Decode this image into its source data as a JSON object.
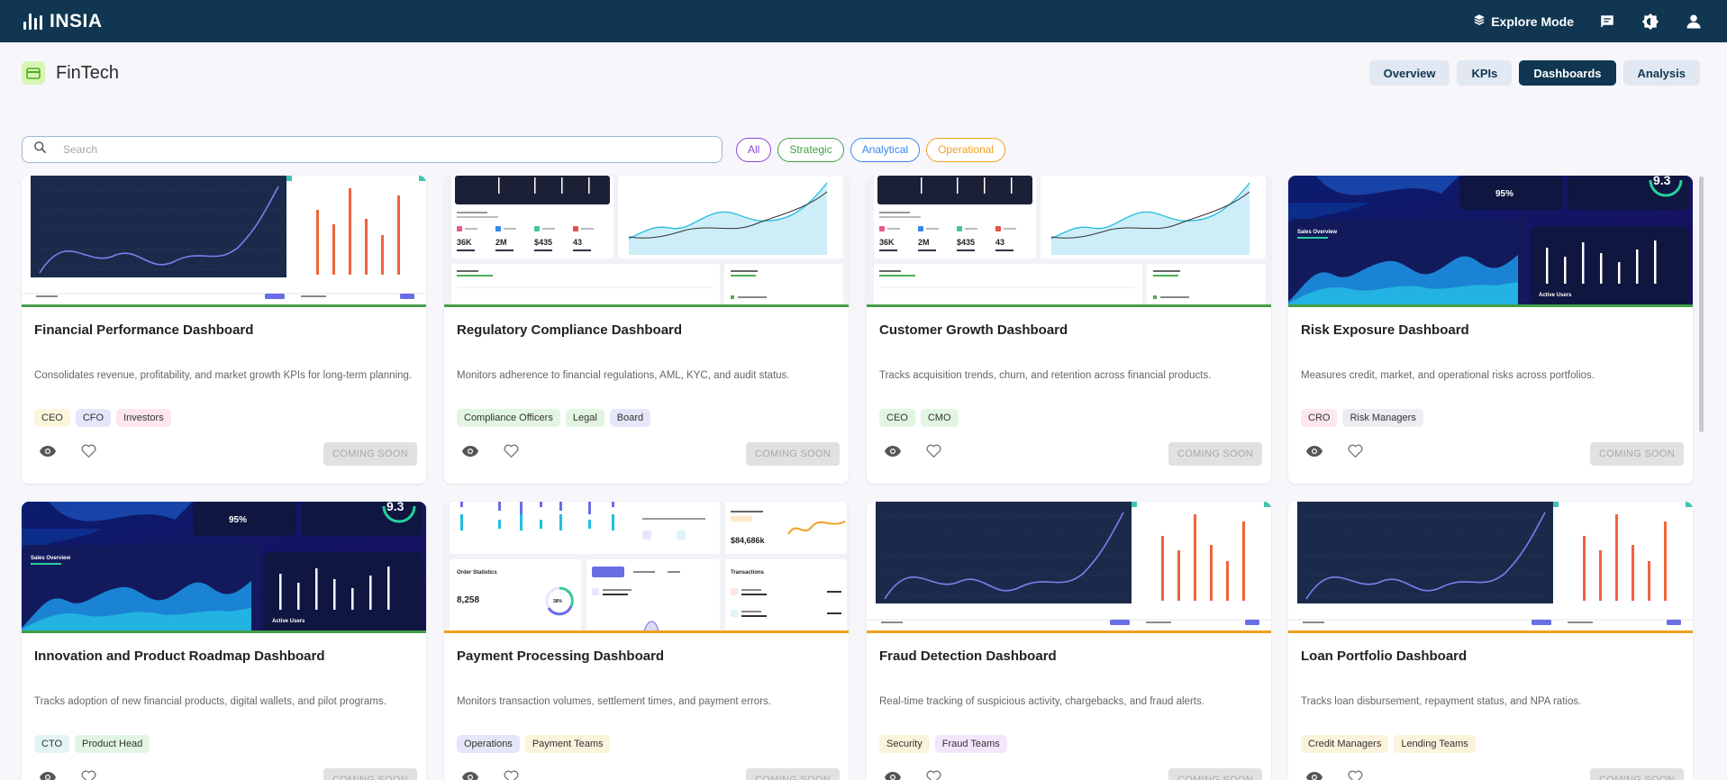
{
  "app": {
    "brand": "INSIA"
  },
  "topbar": {
    "explore_label": "Explore Mode"
  },
  "org": {
    "name": "FinTech"
  },
  "nav_tabs": [
    {
      "label": "Overview",
      "active": false
    },
    {
      "label": "KPIs",
      "active": false
    },
    {
      "label": "Dashboards",
      "active": true
    },
    {
      "label": "Analysis",
      "active": false
    }
  ],
  "search": {
    "placeholder": "Search",
    "value": ""
  },
  "filters": [
    {
      "label": "All",
      "color": "#8e44d8"
    },
    {
      "label": "Strategic",
      "color": "#43a047"
    },
    {
      "label": "Analytical",
      "color": "#3a86e8"
    },
    {
      "label": "Operational",
      "color": "#f0a020"
    }
  ],
  "coming_soon_label": "COMING SOON",
  "colors": {
    "strategic": "#43a047",
    "operational": "#f0a020",
    "topbar": "#103651",
    "accent_orange": "#f0643c"
  },
  "cards": [
    {
      "title": "Financial Performance Dashboard",
      "description": "Consolidates revenue, profitability, and market growth KPIs for long-term planning.",
      "tags": [
        {
          "label": "CEO",
          "bg": "#fbf6dc"
        },
        {
          "label": "CFO",
          "bg": "#e6e6fb"
        },
        {
          "label": "Investors",
          "bg": "#fde6ef"
        }
      ],
      "category": "strategic",
      "thumbnail": "line-bar"
    },
    {
      "title": "Regulatory Compliance Dashboard",
      "description": "Monitors adherence to financial regulations, AML, KYC, and audit status.",
      "tags": [
        {
          "label": "Compliance Officers",
          "bg": "#e2f5e2"
        },
        {
          "label": "Legal",
          "bg": "#e2f5e2"
        },
        {
          "label": "Board",
          "bg": "#e6e6fb"
        }
      ],
      "category": "strategic",
      "thumbnail": "stats-white"
    },
    {
      "title": "Customer Growth Dashboard",
      "description": "Tracks acquisition trends, churn, and retention across financial products.",
      "tags": [
        {
          "label": "CEO",
          "bg": "#e2f5e2"
        },
        {
          "label": "CMO",
          "bg": "#e2f5e2"
        }
      ],
      "category": "strategic",
      "thumbnail": "stats-white"
    },
    {
      "title": "Risk Exposure Dashboard",
      "description": "Measures credit, market, and operational risks across portfolios.",
      "tags": [
        {
          "label": "CRO",
          "bg": "#fde6ef"
        },
        {
          "label": "Risk Managers",
          "bg": "#ececf3"
        }
      ],
      "category": "strategic",
      "thumbnail": "dark-blue"
    },
    {
      "title": "Innovation and Product Roadmap Dashboard",
      "description": "Tracks adoption of new financial products, digital wallets, and pilot programs.",
      "tags": [
        {
          "label": "CTO",
          "bg": "#e2f5f3"
        },
        {
          "label": "Product Head",
          "bg": "#e2f5e2"
        }
      ],
      "category": "strategic",
      "thumbnail": "dark-blue"
    },
    {
      "title": "Payment Processing Dashboard",
      "description": "Monitors transaction volumes, settlement times, and payment errors.",
      "tags": [
        {
          "label": "Operations",
          "bg": "#e6e6fb"
        },
        {
          "label": "Payment Teams",
          "bg": "#fbf3dc"
        }
      ],
      "category": "operational",
      "thumbnail": "payments-white"
    },
    {
      "title": "Fraud Detection Dashboard",
      "description": "Real-time tracking of suspicious activity, chargebacks, and fraud alerts.",
      "tags": [
        {
          "label": "Security",
          "bg": "#fbf3dc"
        },
        {
          "label": "Fraud Teams",
          "bg": "#f3e6fb"
        }
      ],
      "category": "operational",
      "thumbnail": "line-bar"
    },
    {
      "title": "Loan Portfolio Dashboard",
      "description": "Tracks loan disbursement, repayment status, and NPA ratios.",
      "tags": [
        {
          "label": "Credit Managers",
          "bg": "#fbf3dc"
        },
        {
          "label": "Lending Teams",
          "bg": "#fbf3dc"
        }
      ],
      "category": "operational",
      "thumbnail": "line-bar"
    }
  ],
  "thumb_text": {
    "kpi_1": "36K",
    "kpi_2": "2M",
    "kpi_3": "$435",
    "kpi_4": "43",
    "big_score": "9.3",
    "percent": "95%",
    "sales_overview": "Sales Overview",
    "active_users": "Active Users",
    "order_statistics": "Order Statistics",
    "order_count": "8,258",
    "order_ring": "38%",
    "profit_value": "$84,686k",
    "transactions": "Transactions"
  }
}
